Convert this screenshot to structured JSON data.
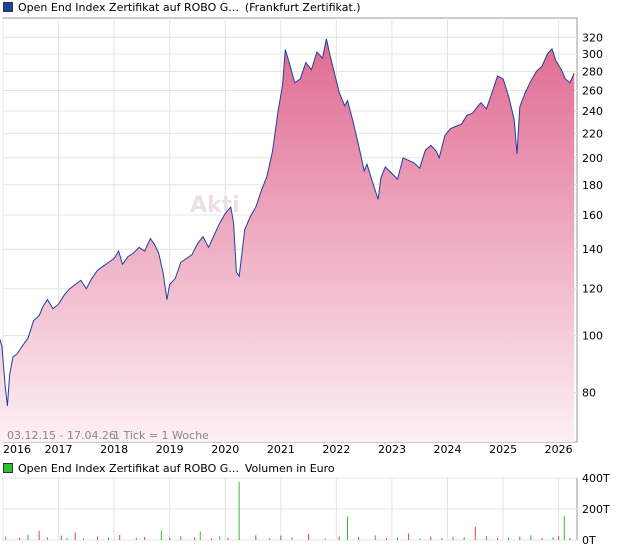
{
  "price_chart": {
    "legend_name": "Open End Index Zertifikat auf ROBO G...",
    "legend_exchange": "(Frankfurt Zertifikat.)",
    "legend_color": "#1f3fa0",
    "range_note": "03.12.15 - 17.04.26",
    "tick_note": "1 Tick = 1 Woche",
    "watermark": "Akti",
    "line_color": "#1f3fa0",
    "fill_top_color": "#e06a92",
    "fill_bottom_color": "#fdf0f4"
  },
  "volume_chart": {
    "legend_name": "Open End Index Zertifikat auf ROBO G...",
    "legend_unit": "Volumen in Euro",
    "legend_color": "#2cc32c"
  },
  "chart_data": [
    {
      "type": "area",
      "scale": "log",
      "grid": true,
      "y_ticks": [
        80,
        100,
        120,
        140,
        160,
        180,
        200,
        220,
        240,
        260,
        280,
        300,
        320
      ],
      "y_tick_labels": [
        "80",
        "100",
        "120",
        "140",
        "160",
        "180",
        "200",
        "220",
        "240",
        "260",
        "280",
        "300",
        "320"
      ],
      "ylim": [
        66,
        345
      ],
      "xlim": [
        2016.0,
        2026.33
      ],
      "x_ticks": [
        2016,
        2017,
        2018,
        2019,
        2020,
        2021,
        2022,
        2023,
        2024,
        2025,
        2026
      ],
      "x_tick_labels": [
        "2016",
        "2017",
        "2018",
        "2019",
        "2020",
        "2021",
        "2022",
        "2023",
        "2024",
        "2025",
        "2026"
      ],
      "series": [
        {
          "x": [
            2015.92,
            2015.98,
            2016.04,
            2016.08,
            2016.12,
            2016.18,
            2016.25,
            2016.35,
            2016.45,
            2016.55,
            2016.65,
            2016.72,
            2016.8,
            2016.9,
            2017.0,
            2017.1,
            2017.2,
            2017.3,
            2017.4,
            2017.5,
            2017.6,
            2017.7,
            2017.8,
            2017.9,
            2018.0,
            2018.08,
            2018.15,
            2018.25,
            2018.35,
            2018.45,
            2018.55,
            2018.65,
            2018.72,
            2018.8,
            2018.88,
            2018.95,
            2019.0,
            2019.1,
            2019.2,
            2019.3,
            2019.4,
            2019.5,
            2019.6,
            2019.7,
            2019.8,
            2019.9,
            2020.0,
            2020.1,
            2020.15,
            2020.2,
            2020.25,
            2020.35,
            2020.45,
            2020.55,
            2020.65,
            2020.75,
            2020.85,
            2020.95,
            2021.03,
            2021.08,
            2021.15,
            2021.25,
            2021.35,
            2021.45,
            2021.55,
            2021.65,
            2021.75,
            2021.82,
            2021.88,
            2021.95,
            2022.05,
            2022.15,
            2022.2,
            2022.3,
            2022.4,
            2022.5,
            2022.55,
            2022.65,
            2022.75,
            2022.8,
            2022.88,
            2023.0,
            2023.1,
            2023.2,
            2023.3,
            2023.4,
            2023.5,
            2023.6,
            2023.7,
            2023.8,
            2023.85,
            2023.95,
            2024.05,
            2024.15,
            2024.25,
            2024.35,
            2024.45,
            2024.55,
            2024.6,
            2024.7,
            2024.8,
            2024.9,
            2025.0,
            2025.1,
            2025.2,
            2025.25,
            2025.3,
            2025.4,
            2025.5,
            2025.6,
            2025.7,
            2025.8,
            2025.88,
            2025.95,
            2026.05,
            2026.12,
            2026.2,
            2026.28
          ],
          "values": [
            100,
            96,
            82,
            76,
            86,
            92,
            93,
            96,
            99,
            106,
            108,
            112,
            115,
            111,
            113,
            117,
            120,
            122,
            124,
            120,
            125,
            129,
            131,
            133,
            135,
            139,
            132,
            136,
            138,
            141,
            139,
            146,
            143,
            138,
            128,
            115,
            122,
            125,
            133,
            135,
            137,
            143,
            147,
            141,
            148,
            155,
            161,
            165,
            155,
            128,
            126,
            151,
            159,
            165,
            176,
            186,
            205,
            240,
            265,
            305,
            290,
            268,
            272,
            290,
            282,
            302,
            295,
            318,
            300,
            282,
            258,
            245,
            250,
            230,
            210,
            190,
            195,
            182,
            170,
            185,
            193,
            188,
            184,
            200,
            198,
            196,
            192,
            206,
            210,
            205,
            200,
            218,
            224,
            226,
            228,
            236,
            238,
            245,
            248,
            242,
            258,
            275,
            272,
            254,
            232,
            203,
            244,
            258,
            270,
            280,
            286,
            300,
            306,
            292,
            282,
            272,
            268,
            278
          ]
        }
      ]
    },
    {
      "type": "bar",
      "xlim": [
        2016.0,
        2026.33
      ],
      "y_ticks": [
        0,
        200,
        400
      ],
      "y_tick_labels": [
        "0T",
        "200T",
        "400T"
      ],
      "ylim": [
        0,
        400
      ],
      "series": [
        {
          "name": "Volumen in Euro",
          "x": [
            2016.05,
            2016.3,
            2016.45,
            2016.65,
            2016.8,
            2017.05,
            2017.15,
            2017.3,
            2017.45,
            2017.7,
            2017.9,
            2018.1,
            2018.4,
            2018.55,
            2018.85,
            2019.0,
            2019.2,
            2019.45,
            2019.55,
            2019.75,
            2019.9,
            2020.05,
            2020.25,
            2020.55,
            2020.8,
            2021.0,
            2021.2,
            2021.5,
            2021.8,
            2022.05,
            2022.2,
            2022.4,
            2022.7,
            2022.9,
            2023.1,
            2023.3,
            2023.5,
            2023.7,
            2023.9,
            2024.1,
            2024.3,
            2024.5,
            2024.7,
            2024.9,
            2025.1,
            2025.3,
            2025.5,
            2025.7,
            2025.9,
            2026.0,
            2026.1,
            2026.2
          ],
          "values": [
            22,
            15,
            35,
            60,
            18,
            28,
            12,
            48,
            10,
            22,
            16,
            32,
            15,
            20,
            62,
            14,
            26,
            18,
            55,
            10,
            24,
            15,
            375,
            30,
            12,
            28,
            18,
            40,
            10,
            22,
            150,
            20,
            30,
            12,
            16,
            42,
            10,
            22,
            14,
            20,
            18,
            85,
            26,
            12,
            15,
            22,
            30,
            12,
            18,
            25,
            155,
            12
          ]
        }
      ]
    }
  ]
}
